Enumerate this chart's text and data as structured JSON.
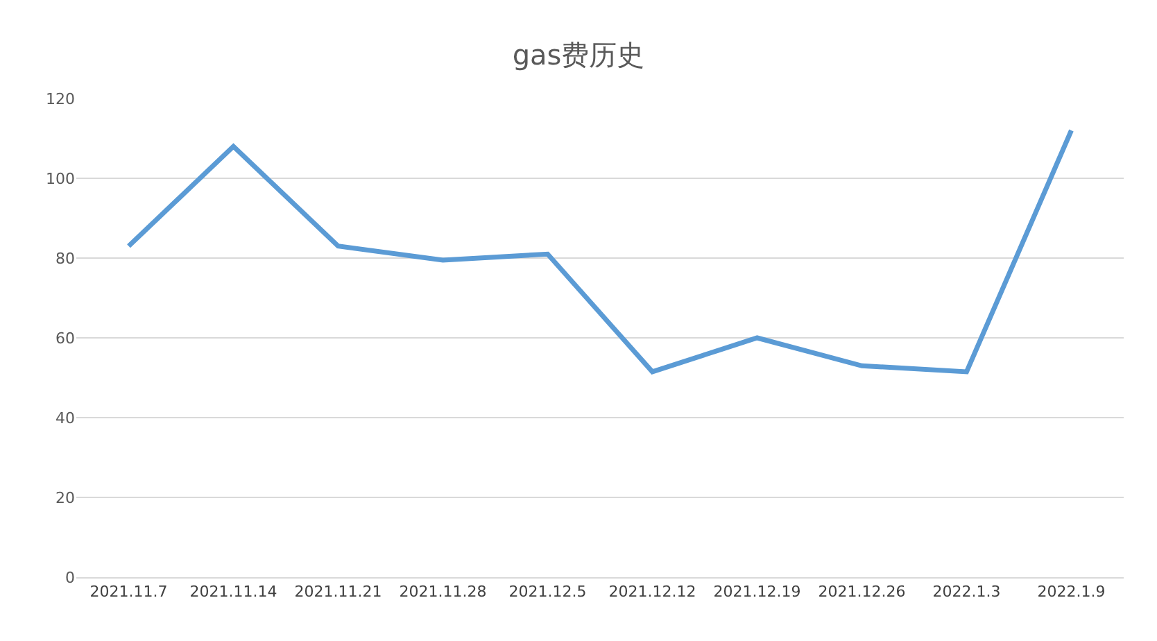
{
  "chart_data": {
    "type": "line",
    "title": "gas费历史",
    "categories": [
      "2021.11.7",
      "2021.11.14",
      "2021.11.21",
      "2021.11.28",
      "2021.12.5",
      "2021.12.12",
      "2021.12.19",
      "2021.12.26",
      "2022.1.3",
      "2022.1.9"
    ],
    "series": [
      {
        "color": "#5b9bd5",
        "values": [
          83,
          108,
          83,
          79.5,
          81,
          51.5,
          60,
          53,
          51.5,
          112
        ]
      }
    ],
    "ylim": [
      0,
      120
    ],
    "yticks": [
      0,
      20,
      40,
      60,
      80,
      100,
      120
    ],
    "grid": "y",
    "marker": "none",
    "line_style": "solid"
  }
}
